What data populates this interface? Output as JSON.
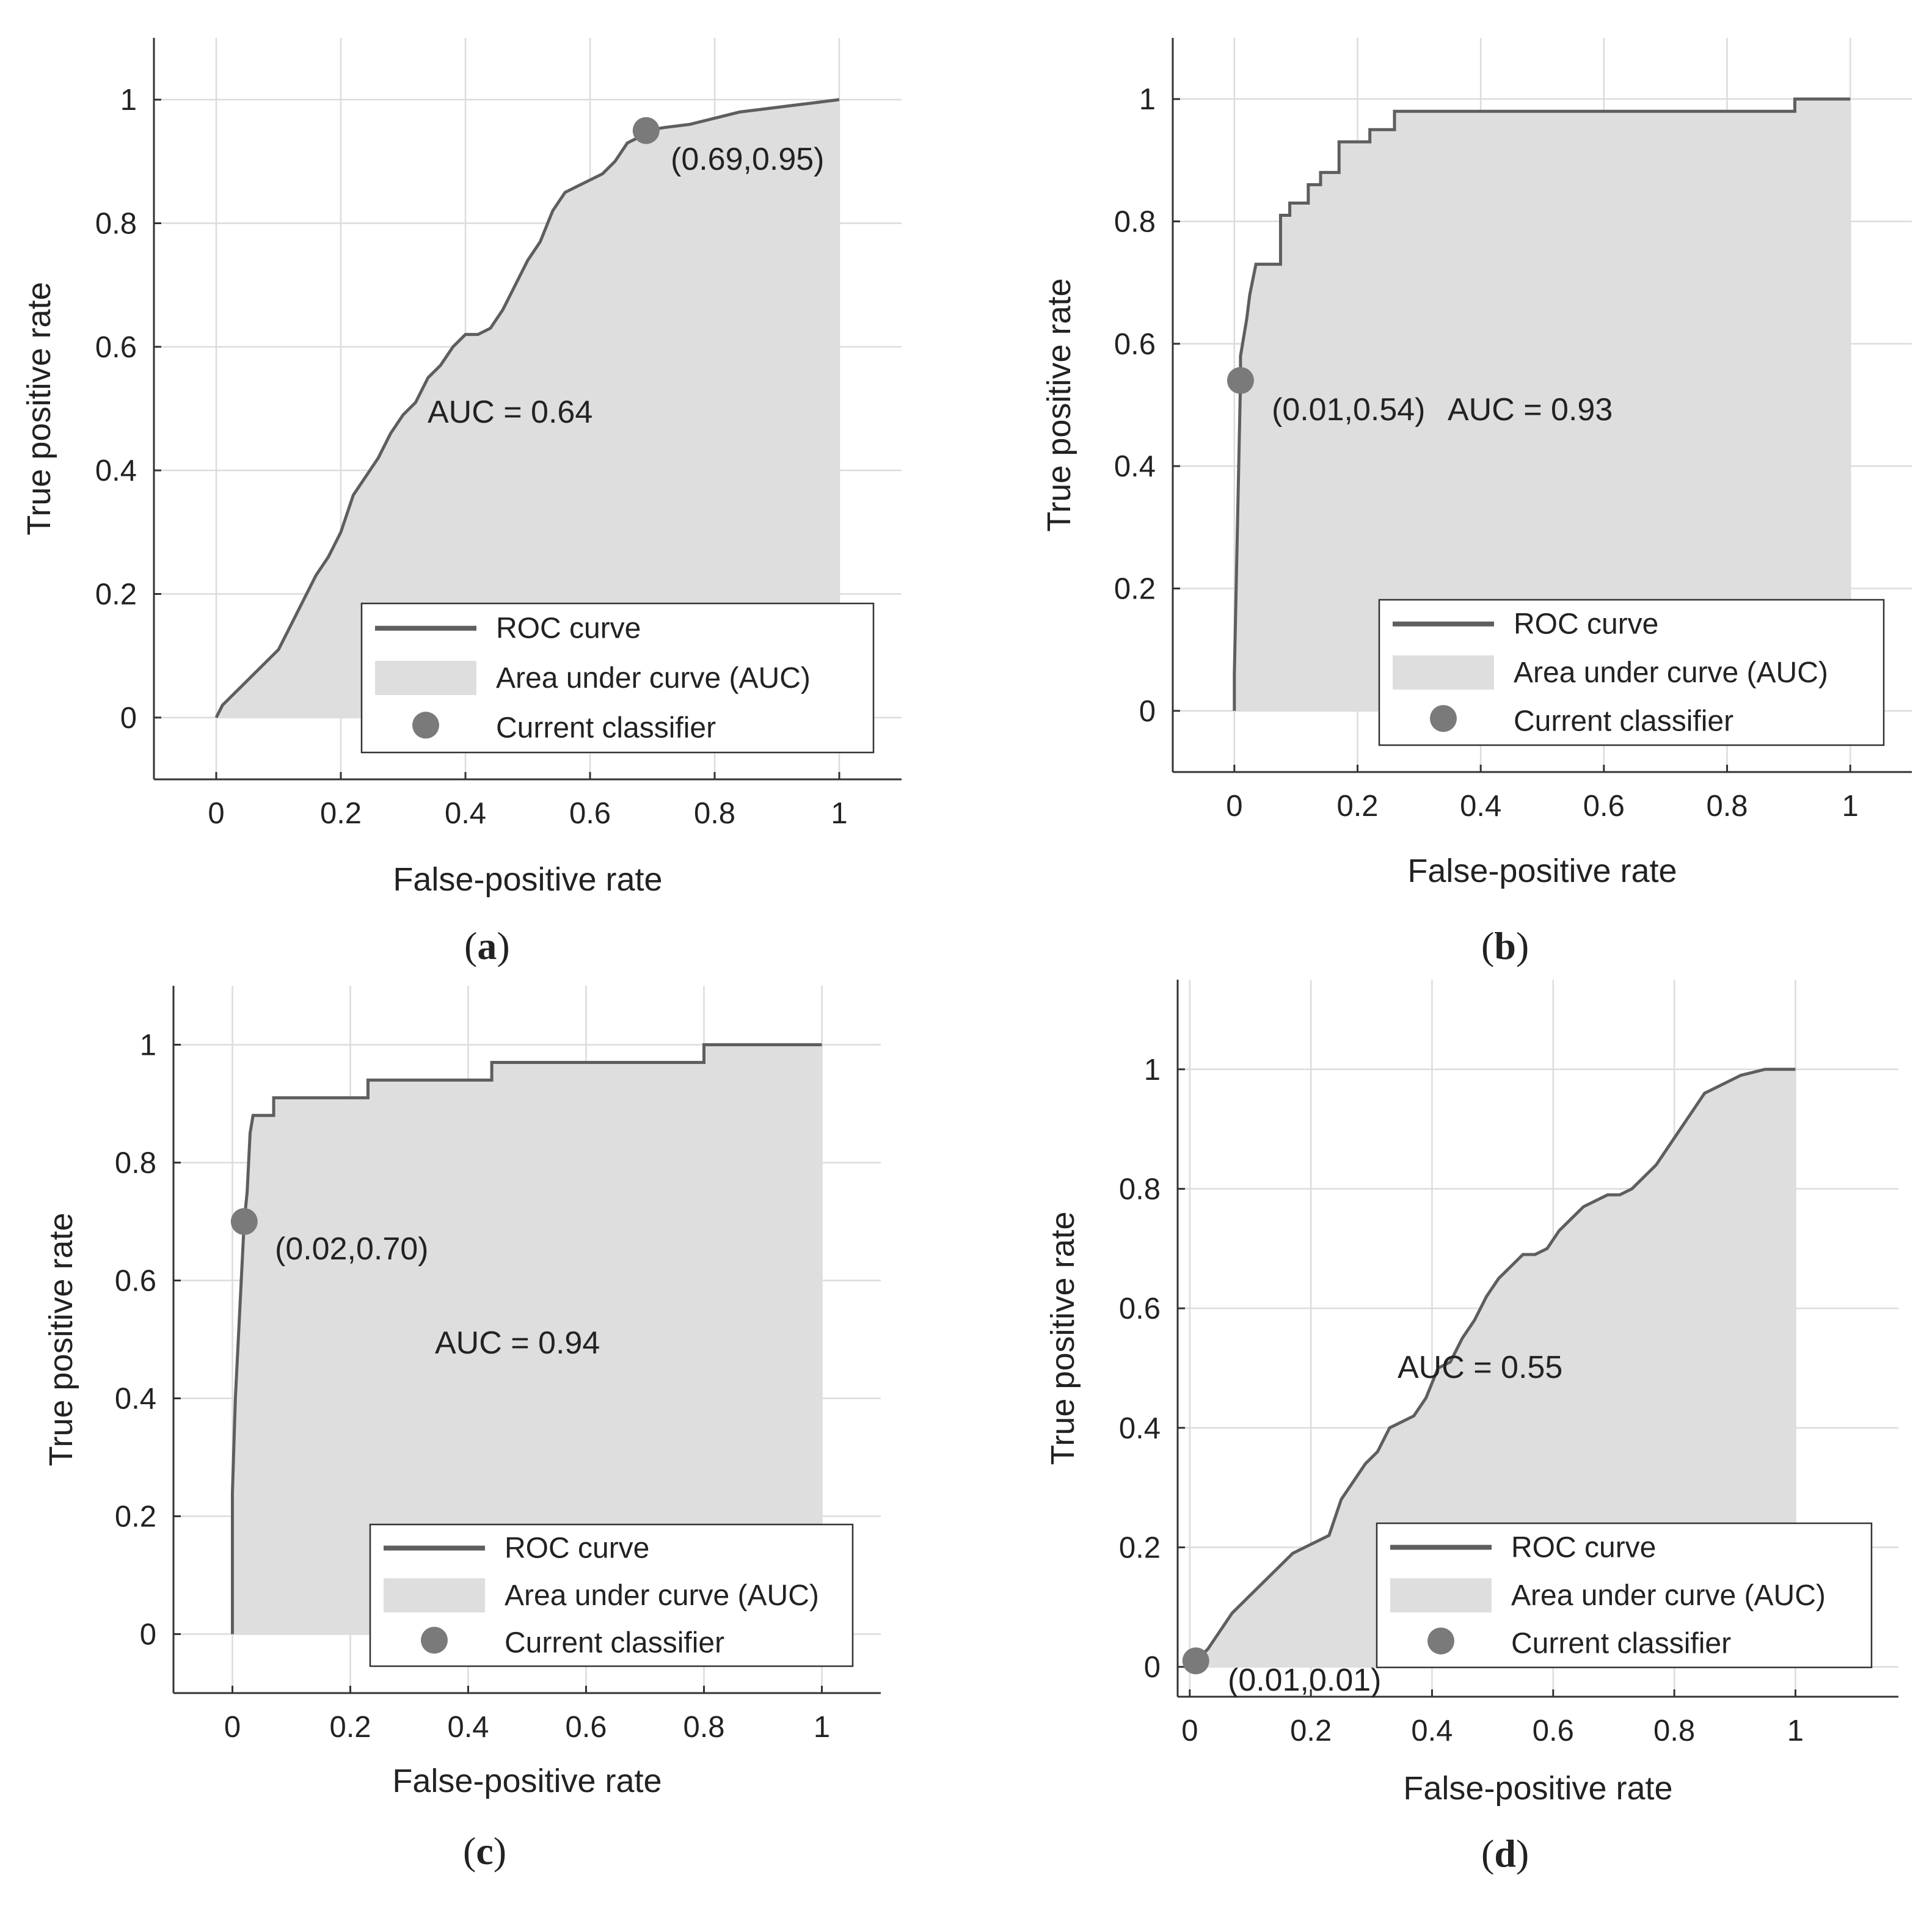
{
  "colors": {
    "roc_line": "#5e5e5e",
    "auc_fill": "#dedede",
    "marker": "#7a7a7a",
    "grid": "#dcdcdc",
    "axis": "#333333"
  },
  "chart_data": [
    {
      "type": "area",
      "panel": "(a)",
      "caption_letter": "a",
      "xlabel": "False-positive rate",
      "ylabel": "True positive rate",
      "xlim": [
        -0.1,
        1.1
      ],
      "ylim": [
        -0.1,
        1.1
      ],
      "xticks": [
        0,
        0.2,
        0.4,
        0.6,
        0.8,
        1
      ],
      "xtick_labels": [
        "0",
        "0.2",
        "0.4",
        "0.6",
        "0.8",
        "1"
      ],
      "yticks": [
        0,
        0.2,
        0.4,
        0.6,
        0.8,
        1
      ],
      "ytick_labels": [
        "0",
        "0.2",
        "0.4",
        "0.6",
        "0.8",
        "1"
      ],
      "grid": true,
      "roc_x": [
        0,
        0.01,
        0.02,
        0.04,
        0.06,
        0.08,
        0.1,
        0.12,
        0.14,
        0.16,
        0.18,
        0.2,
        0.22,
        0.24,
        0.26,
        0.28,
        0.3,
        0.32,
        0.34,
        0.36,
        0.38,
        0.4,
        0.42,
        0.44,
        0.46,
        0.48,
        0.5,
        0.52,
        0.54,
        0.56,
        0.58,
        0.6,
        0.62,
        0.64,
        0.66,
        0.68,
        0.69,
        0.72,
        0.76,
        0.8,
        0.84,
        0.88,
        0.92,
        0.96,
        1.0
      ],
      "roc_y": [
        0,
        0.02,
        0.03,
        0.05,
        0.07,
        0.09,
        0.11,
        0.15,
        0.19,
        0.23,
        0.26,
        0.3,
        0.36,
        0.39,
        0.42,
        0.46,
        0.49,
        0.51,
        0.55,
        0.57,
        0.6,
        0.62,
        0.62,
        0.63,
        0.66,
        0.7,
        0.74,
        0.77,
        0.82,
        0.85,
        0.86,
        0.87,
        0.88,
        0.9,
        0.93,
        0.94,
        0.95,
        0.955,
        0.96,
        0.97,
        0.98,
        0.985,
        0.99,
        0.995,
        1.0
      ],
      "current_classifier": {
        "x": 0.69,
        "y": 0.95
      },
      "point_label": "(0.69,0.95)",
      "auc_label": "AUC = 0.64",
      "legend": [
        "ROC curve",
        "Area under curve (AUC)",
        "Current classifier"
      ],
      "legend_position": "bottom-right"
    },
    {
      "type": "area",
      "panel": "(b)",
      "caption_letter": "b",
      "xlabel": "False-positive rate",
      "ylabel": "True positive rate",
      "xlim": [
        -0.1,
        1.1
      ],
      "ylim": [
        -0.1,
        1.1
      ],
      "xticks": [
        0,
        0.2,
        0.4,
        0.6,
        0.8,
        1
      ],
      "xtick_labels": [
        "0",
        "0.2",
        "0.4",
        "0.6",
        "0.8",
        "1"
      ],
      "yticks": [
        0,
        0.2,
        0.4,
        0.6,
        0.8,
        1
      ],
      "ytick_labels": [
        "0",
        "0.2",
        "0.4",
        "0.6",
        "0.8",
        "1"
      ],
      "grid": true,
      "roc_x": [
        0,
        0.0,
        0.005,
        0.01,
        0.01,
        0.015,
        0.02,
        0.025,
        0.035,
        0.035,
        0.075,
        0.075,
        0.09,
        0.09,
        0.12,
        0.12,
        0.14,
        0.14,
        0.17,
        0.17,
        0.22,
        0.22,
        0.26,
        0.26,
        0.91,
        0.91,
        1.0
      ],
      "roc_y": [
        0,
        0.06,
        0.3,
        0.54,
        0.58,
        0.61,
        0.64,
        0.68,
        0.73,
        0.73,
        0.73,
        0.81,
        0.81,
        0.83,
        0.83,
        0.86,
        0.86,
        0.88,
        0.88,
        0.93,
        0.93,
        0.95,
        0.95,
        0.98,
        0.98,
        1.0,
        1.0
      ],
      "current_classifier": {
        "x": 0.01,
        "y": 0.54
      },
      "point_label": "(0.01,0.54)",
      "auc_label": "AUC = 0.93",
      "legend": [
        "ROC curve",
        "Area under curve (AUC)",
        "Current classifier"
      ],
      "legend_position": "bottom-right"
    },
    {
      "type": "area",
      "panel": "(c)",
      "caption_letter": "c",
      "xlabel": "False-positive rate",
      "ylabel": "True positive rate",
      "xlim": [
        -0.1,
        1.1
      ],
      "ylim": [
        -0.1,
        1.1
      ],
      "xticks": [
        0,
        0.2,
        0.4,
        0.6,
        0.8,
        1
      ],
      "xtick_labels": [
        "0",
        "0.2",
        "0.4",
        "0.6",
        "0.8",
        "1"
      ],
      "yticks": [
        0,
        0.2,
        0.4,
        0.6,
        0.8,
        1
      ],
      "ytick_labels": [
        "0",
        "0.2",
        "0.4",
        "0.6",
        "0.8",
        "1"
      ],
      "grid": true,
      "roc_x": [
        0,
        0.0,
        0.005,
        0.01,
        0.015,
        0.02,
        0.025,
        0.03,
        0.035,
        0.035,
        0.07,
        0.07,
        0.23,
        0.23,
        0.44,
        0.44,
        0.8,
        0.8,
        1.0
      ],
      "roc_y": [
        0,
        0.24,
        0.4,
        0.5,
        0.6,
        0.7,
        0.75,
        0.85,
        0.88,
        0.88,
        0.88,
        0.91,
        0.91,
        0.94,
        0.94,
        0.97,
        0.97,
        1.0,
        1.0
      ],
      "current_classifier": {
        "x": 0.02,
        "y": 0.7
      },
      "point_label": "(0.02,0.70)",
      "auc_label": "AUC = 0.94",
      "legend": [
        "ROC curve",
        "Area under curve (AUC)",
        "Current classifier"
      ],
      "legend_position": "bottom-right"
    },
    {
      "type": "area",
      "panel": "(d)",
      "caption_letter": "d",
      "xlabel": "False-positive rate",
      "ylabel": "True positive rate",
      "xlim": [
        -0.02,
        1.17
      ],
      "ylim": [
        -0.05,
        1.15
      ],
      "xticks": [
        0,
        0.2,
        0.4,
        0.6,
        0.8,
        1
      ],
      "xtick_labels": [
        "0",
        "0.2",
        "0.4",
        "0.6",
        "0.8",
        "1"
      ],
      "yticks": [
        0,
        0.2,
        0.4,
        0.6,
        0.8,
        1
      ],
      "ytick_labels": [
        "0",
        "0.2",
        "0.4",
        "0.6",
        "0.8",
        "1"
      ],
      "grid": true,
      "roc_x": [
        0,
        0.01,
        0.03,
        0.05,
        0.07,
        0.09,
        0.11,
        0.13,
        0.15,
        0.17,
        0.19,
        0.21,
        0.23,
        0.25,
        0.27,
        0.29,
        0.31,
        0.33,
        0.35,
        0.37,
        0.39,
        0.41,
        0.43,
        0.45,
        0.47,
        0.49,
        0.51,
        0.53,
        0.55,
        0.57,
        0.59,
        0.61,
        0.63,
        0.65,
        0.67,
        0.69,
        0.71,
        0.73,
        0.75,
        0.77,
        0.79,
        0.81,
        0.83,
        0.85,
        0.87,
        0.89,
        0.91,
        0.93,
        0.95,
        0.97,
        1.0
      ],
      "roc_y": [
        0,
        0.01,
        0.03,
        0.06,
        0.09,
        0.11,
        0.13,
        0.15,
        0.17,
        0.19,
        0.2,
        0.21,
        0.22,
        0.28,
        0.31,
        0.34,
        0.36,
        0.4,
        0.41,
        0.42,
        0.45,
        0.5,
        0.51,
        0.55,
        0.58,
        0.62,
        0.65,
        0.67,
        0.69,
        0.69,
        0.7,
        0.73,
        0.75,
        0.77,
        0.78,
        0.79,
        0.79,
        0.8,
        0.82,
        0.84,
        0.87,
        0.9,
        0.93,
        0.96,
        0.97,
        0.98,
        0.99,
        0.995,
        1.0,
        1.0,
        1.0
      ],
      "current_classifier": {
        "x": 0.01,
        "y": 0.01
      },
      "point_label": "(0.01,0.01)",
      "auc_label": "AUC = 0.55",
      "legend": [
        "ROC curve",
        "Area under curve (AUC)",
        "Current classifier"
      ],
      "legend_position": "bottom-right"
    }
  ]
}
